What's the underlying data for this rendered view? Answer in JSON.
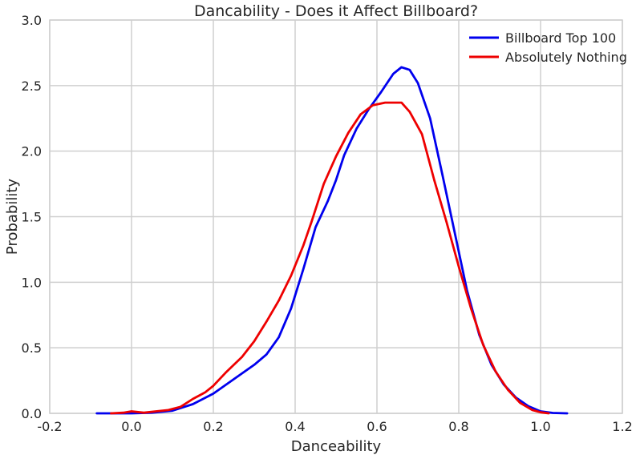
{
  "chart_data": {
    "type": "line",
    "title": "Dancability - Does it Affect Billboard?",
    "xlabel": "Danceability",
    "ylabel": "Probability",
    "xlim": [
      -0.2,
      1.2
    ],
    "ylim": [
      0.0,
      3.0
    ],
    "xticks": [
      -0.2,
      0.0,
      0.2,
      0.4,
      0.6,
      0.8,
      1.0,
      1.2
    ],
    "xtick_labels": [
      "-0.2",
      "0.0",
      "0.2",
      "0.4",
      "0.6",
      "0.8",
      "1.0",
      "1.2"
    ],
    "yticks": [
      0.0,
      0.5,
      1.0,
      1.5,
      2.0,
      2.5,
      3.0
    ],
    "ytick_labels": [
      "0.0",
      "0.5",
      "1.0",
      "1.5",
      "2.0",
      "2.5",
      "3.0"
    ],
    "grid": true,
    "legend_position": "top-right",
    "series": [
      {
        "name": "Billboard Top 100",
        "color": "#0000ee",
        "points": [
          [
            -0.085,
            0.0
          ],
          [
            -0.05,
            0.0
          ],
          [
            0.0,
            0.0
          ],
          [
            0.05,
            0.005
          ],
          [
            0.1,
            0.02
          ],
          [
            0.15,
            0.07
          ],
          [
            0.2,
            0.15
          ],
          [
            0.25,
            0.26
          ],
          [
            0.3,
            0.37
          ],
          [
            0.33,
            0.45
          ],
          [
            0.36,
            0.58
          ],
          [
            0.39,
            0.8
          ],
          [
            0.42,
            1.1
          ],
          [
            0.45,
            1.42
          ],
          [
            0.48,
            1.62
          ],
          [
            0.5,
            1.78
          ],
          [
            0.52,
            1.97
          ],
          [
            0.55,
            2.17
          ],
          [
            0.58,
            2.32
          ],
          [
            0.61,
            2.45
          ],
          [
            0.64,
            2.59
          ],
          [
            0.66,
            2.64
          ],
          [
            0.68,
            2.62
          ],
          [
            0.7,
            2.52
          ],
          [
            0.73,
            2.25
          ],
          [
            0.76,
            1.82
          ],
          [
            0.79,
            1.38
          ],
          [
            0.82,
            0.94
          ],
          [
            0.85,
            0.6
          ],
          [
            0.88,
            0.37
          ],
          [
            0.91,
            0.22
          ],
          [
            0.94,
            0.12
          ],
          [
            0.97,
            0.055
          ],
          [
            1.0,
            0.015
          ],
          [
            1.03,
            0.003
          ],
          [
            1.065,
            0.0
          ]
        ]
      },
      {
        "name": "Absolutely Nothing",
        "color": "#ee0000",
        "points": [
          [
            -0.05,
            0.0
          ],
          [
            -0.02,
            0.005
          ],
          [
            0.0,
            0.015
          ],
          [
            0.03,
            0.005
          ],
          [
            0.06,
            0.015
          ],
          [
            0.09,
            0.025
          ],
          [
            0.12,
            0.05
          ],
          [
            0.15,
            0.11
          ],
          [
            0.18,
            0.16
          ],
          [
            0.2,
            0.21
          ],
          [
            0.23,
            0.31
          ],
          [
            0.27,
            0.43
          ],
          [
            0.3,
            0.55
          ],
          [
            0.33,
            0.7
          ],
          [
            0.36,
            0.86
          ],
          [
            0.39,
            1.05
          ],
          [
            0.42,
            1.28
          ],
          [
            0.44,
            1.46
          ],
          [
            0.47,
            1.75
          ],
          [
            0.5,
            1.96
          ],
          [
            0.53,
            2.14
          ],
          [
            0.56,
            2.28
          ],
          [
            0.59,
            2.35
          ],
          [
            0.62,
            2.37
          ],
          [
            0.66,
            2.37
          ],
          [
            0.68,
            2.3
          ],
          [
            0.71,
            2.13
          ],
          [
            0.74,
            1.78
          ],
          [
            0.77,
            1.46
          ],
          [
            0.8,
            1.12
          ],
          [
            0.83,
            0.8
          ],
          [
            0.86,
            0.52
          ],
          [
            0.89,
            0.32
          ],
          [
            0.92,
            0.18
          ],
          [
            0.95,
            0.08
          ],
          [
            0.98,
            0.025
          ],
          [
            1.0,
            0.008
          ],
          [
            1.02,
            0.0
          ]
        ]
      }
    ]
  }
}
